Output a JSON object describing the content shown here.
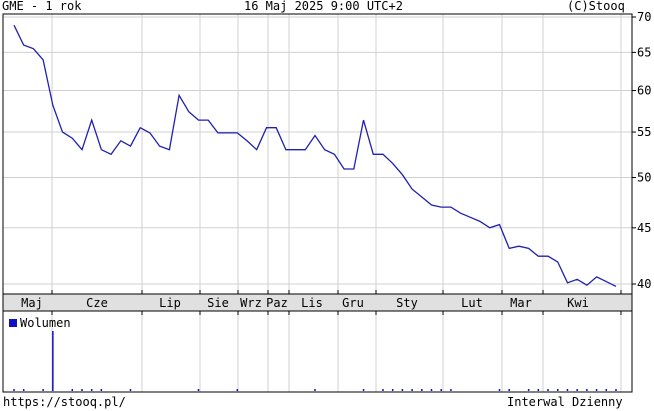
{
  "header": {
    "title": "GME - 1 rok",
    "datetime": "16 Maj 2025 9:00 UTC+2",
    "copyright": "(C)Stooq"
  },
  "footer": {
    "url": "https://stooq.pl/",
    "interval": "Interwal Dzienny"
  },
  "colors": {
    "line": "#2020b0",
    "grid": "#d0d0d0",
    "month_bar": "#e0e0e0",
    "volume": "#1010c0"
  },
  "chart_data": [
    {
      "type": "line",
      "yscale": "log",
      "ylim": [
        39.5,
        70
      ],
      "yticks": [
        70,
        65,
        60,
        55,
        50,
        45,
        40
      ],
      "grid": true,
      "month_labels": [
        "Maj",
        "Cze",
        "Lip",
        "Sie",
        "Wrz",
        "Paz",
        "Lis",
        "Gru",
        "Sty",
        "Lut",
        "Mar",
        "Kwi"
      ],
      "values": [
        68.8,
        66.0,
        65.5,
        64.0,
        58.2,
        55.0,
        54.3,
        53.0,
        56.4,
        53.0,
        52.5,
        54.0,
        53.4,
        55.5,
        54.9,
        53.4,
        53.0,
        59.4,
        57.4,
        56.4,
        56.4,
        54.9,
        54.9,
        54.9,
        54.0,
        53.0,
        55.5,
        55.5,
        53.0,
        53.0,
        53.0,
        54.6,
        53.0,
        52.5,
        50.9,
        50.9,
        56.4,
        52.5,
        52.5,
        51.5,
        50.3,
        48.8,
        48.0,
        47.2,
        47.0,
        47.0,
        46.4,
        46.0,
        45.6,
        45.0,
        45.3,
        43.1,
        43.3,
        43.1,
        42.4,
        42.4,
        41.9,
        40.1,
        40.4,
        39.9,
        40.6,
        40.2,
        39.8
      ]
    },
    {
      "type": "bar",
      "legend": "Wolumen",
      "values": [
        2,
        2,
        0,
        2,
        100,
        0,
        1,
        1,
        1,
        2,
        0,
        0,
        1,
        0,
        0,
        0,
        0,
        0,
        0,
        2,
        0,
        0,
        0,
        1,
        0,
        0,
        0,
        0,
        0,
        0,
        0,
        1,
        0,
        0,
        0,
        0,
        3,
        0,
        1,
        1,
        1,
        2,
        2,
        1,
        1,
        1,
        0,
        0,
        0,
        0,
        1,
        1,
        0,
        2,
        1,
        1,
        1,
        1,
        3,
        1,
        1,
        2,
        1
      ]
    }
  ]
}
